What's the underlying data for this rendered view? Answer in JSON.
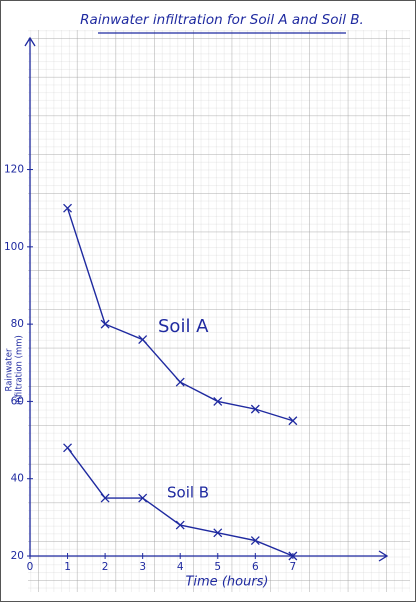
{
  "chart_data": {
    "type": "line",
    "title": "Rainwater infiltration for Soil A and Soil B.",
    "xlabel": "Time (hours)",
    "ylabel": [
      "Rainwater",
      "infiltration (mm)"
    ],
    "x": [
      1,
      2,
      3,
      4,
      5,
      6,
      7
    ],
    "series": [
      {
        "name": "Soil A",
        "color": "#1f2aa0",
        "values": [
          110,
          80,
          76,
          65,
          60,
          58,
          55
        ]
      },
      {
        "name": "Soil B",
        "color": "#1f2aa0",
        "values": [
          48,
          35,
          35,
          28,
          26,
          24,
          20
        ]
      }
    ],
    "xlim": [
      0,
      9.4
    ],
    "xticks": [
      0,
      1,
      2,
      3,
      4,
      5,
      6,
      7
    ],
    "ylim": [
      20,
      153
    ],
    "yticks": [
      20,
      40,
      60,
      80,
      100,
      120
    ],
    "grid": true
  }
}
